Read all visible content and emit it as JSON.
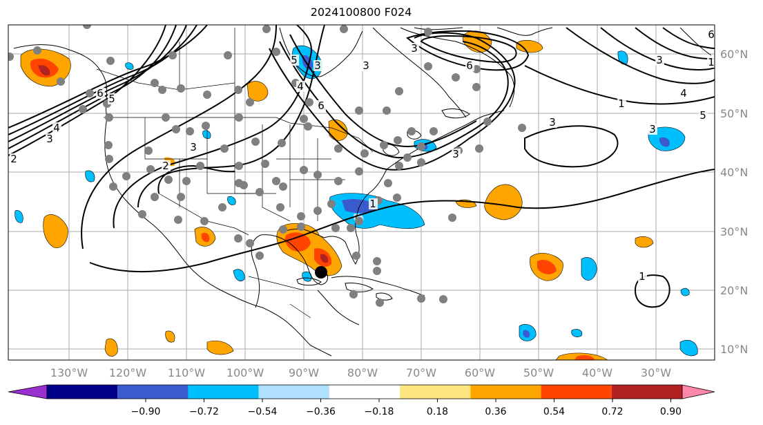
{
  "title": "2024100800 F024",
  "lat_labels": [
    "60°N",
    "50°N",
    "40°N",
    "30°N",
    "20°N",
    "10°N"
  ],
  "lon_labels": [
    "130°W",
    "120°W",
    "110°W",
    "100°W",
    "90°W",
    "80°W",
    "70°W",
    "60°W",
    "50°W",
    "40°W",
    "30°W"
  ],
  "colorbar": {
    "colors": [
      "#9b30d0",
      "#00008b",
      "#3a5bcd",
      "#00bfff",
      "#b0e0ff",
      "#ffffff",
      "#ffe680",
      "#ffa500",
      "#ff4500",
      "#b22222",
      "#ff88aa"
    ],
    "under_color": "#9b30d0",
    "over_color": "#ff88aa",
    "tick_labels": [
      "−0.90",
      "−0.72",
      "−0.54",
      "−0.36",
      "−0.18",
      "0.18",
      "0.36",
      "0.54",
      "0.72",
      "0.90"
    ]
  },
  "contour_labels": [
    "6",
    "5",
    "4",
    "3",
    "2",
    "3",
    "2",
    "3",
    "3",
    "4",
    "5",
    "6",
    "3",
    "6",
    "3",
    "1",
    "3",
    "1",
    "3",
    "6",
    "4",
    "5",
    "3",
    "1",
    "1"
  ],
  "colors": {
    "land_line": "#000000",
    "grid": "#aaaaaa",
    "dot": "#808080",
    "storm": "#000000"
  }
}
